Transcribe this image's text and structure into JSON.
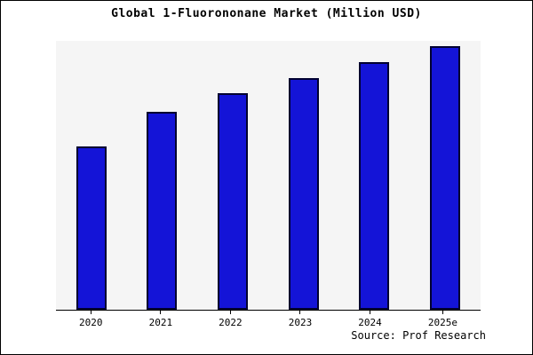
{
  "title": "Global 1-Fluorononane Market (Million USD)",
  "source": "Source: Prof Research",
  "chart_data": {
    "type": "bar",
    "title": "Global 1-Fluorononane Market (Million USD)",
    "categories": [
      "2020",
      "2021",
      "2022",
      "2023",
      "2024",
      "2025e"
    ],
    "values": [
      62,
      75,
      82,
      88,
      94,
      100
    ],
    "xlabel": "",
    "ylabel": "",
    "ylim": [
      0,
      102
    ],
    "grid": false,
    "legend": false,
    "bar_fill": "#1414d7",
    "bar_border": "#000030",
    "plot_bg": "#f5f5f5",
    "annotations": [
      "Source: Prof Research"
    ]
  }
}
